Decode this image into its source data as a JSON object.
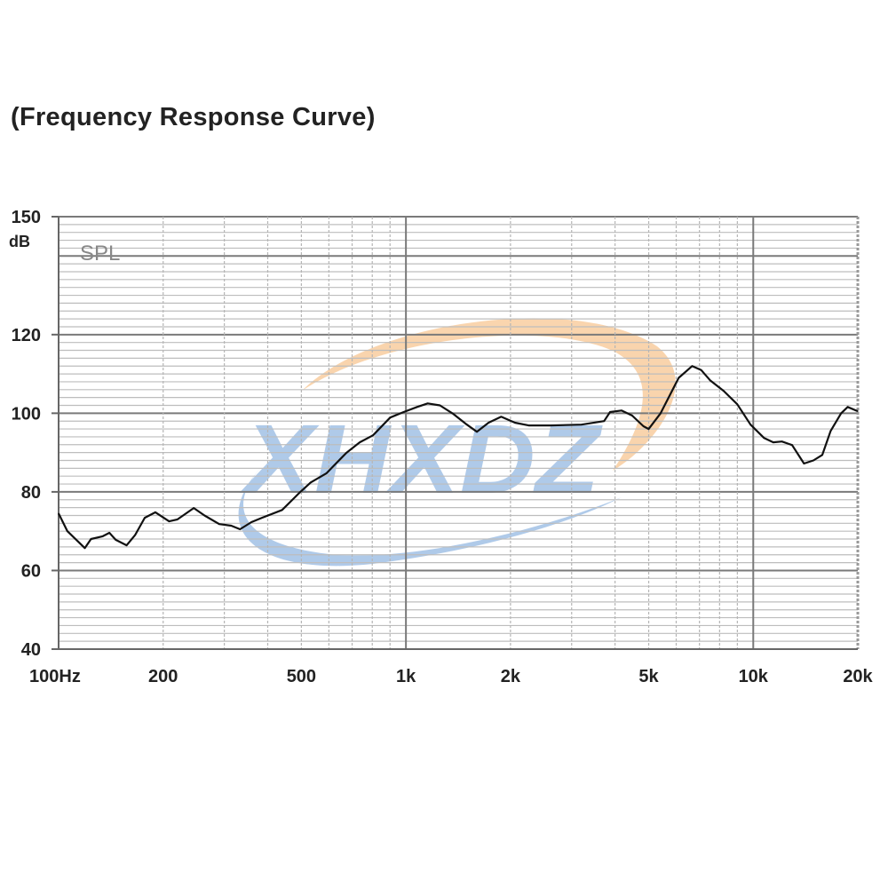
{
  "chart_data": {
    "type": "line",
    "title": "(Frequency Response Curve)",
    "ylabel": "dB",
    "series_label": "SPL",
    "xscale": "log",
    "xlim": [
      100,
      20000
    ],
    "ylim": [
      40,
      150
    ],
    "x_ticks": [
      {
        "value": 100,
        "label": "100Hz"
      },
      {
        "value": 200,
        "label": "200"
      },
      {
        "value": 500,
        "label": "500"
      },
      {
        "value": 1000,
        "label": "1k"
      },
      {
        "value": 2000,
        "label": "2k"
      },
      {
        "value": 5000,
        "label": "5k"
      },
      {
        "value": 10000,
        "label": "10k"
      },
      {
        "value": 20000,
        "label": "20k"
      }
    ],
    "y_ticks": [
      {
        "value": 150,
        "label": "150"
      },
      {
        "value": 120,
        "label": "120"
      },
      {
        "value": 100,
        "label": "100"
      },
      {
        "value": 80,
        "label": "80"
      },
      {
        "value": 60,
        "label": "60"
      },
      {
        "value": 40,
        "label": "40"
      }
    ],
    "grid": true,
    "line_color": "#111111",
    "watermark": "XHXDZ",
    "series": [
      {
        "name": "SPL",
        "points": [
          [
            100,
            74.5
          ],
          [
            106,
            70
          ],
          [
            119,
            65.7
          ],
          [
            124,
            68
          ],
          [
            134,
            68.7
          ],
          [
            140,
            69.6
          ],
          [
            146,
            67.8
          ],
          [
            157,
            66.4
          ],
          [
            166,
            69
          ],
          [
            177,
            73.4
          ],
          [
            190,
            74.8
          ],
          [
            208,
            72.5
          ],
          [
            220,
            73
          ],
          [
            245,
            75.9
          ],
          [
            263,
            74
          ],
          [
            290,
            71.8
          ],
          [
            314,
            71.4
          ],
          [
            333,
            70.5
          ],
          [
            359,
            72.3
          ],
          [
            385,
            73.4
          ],
          [
            440,
            75.4
          ],
          [
            490,
            79.5
          ],
          [
            532,
            82.4
          ],
          [
            590,
            84.7
          ],
          [
            673,
            89.9
          ],
          [
            736,
            92.6
          ],
          [
            804,
            94.4
          ],
          [
            901,
            98.9
          ],
          [
            985,
            100.3
          ],
          [
            1077,
            101.6
          ],
          [
            1155,
            102.5
          ],
          [
            1253,
            102
          ],
          [
            1370,
            99.8
          ],
          [
            1498,
            97.1
          ],
          [
            1600,
            95.3
          ],
          [
            1730,
            97.6
          ],
          [
            1880,
            99.1
          ],
          [
            2060,
            97.6
          ],
          [
            2255,
            96.9
          ],
          [
            2605,
            96.9
          ],
          [
            3200,
            97.1
          ],
          [
            3720,
            98
          ],
          [
            3870,
            100.3
          ],
          [
            4175,
            100.7
          ],
          [
            4480,
            99.4
          ],
          [
            4830,
            96.7
          ],
          [
            5000,
            96
          ],
          [
            5410,
            100
          ],
          [
            6100,
            109
          ],
          [
            6670,
            112
          ],
          [
            7080,
            111
          ],
          [
            7510,
            108.4
          ],
          [
            8210,
            105.7
          ],
          [
            8990,
            102.3
          ],
          [
            9820,
            97.1
          ],
          [
            10750,
            93.7
          ],
          [
            11420,
            92.6
          ],
          [
            12090,
            92.8
          ],
          [
            12940,
            91.9
          ],
          [
            14000,
            87.2
          ],
          [
            14900,
            88
          ],
          [
            15800,
            89.4
          ],
          [
            16700,
            95.5
          ],
          [
            17900,
            100
          ],
          [
            18700,
            101.6
          ],
          [
            20000,
            100.5
          ]
        ]
      }
    ]
  }
}
